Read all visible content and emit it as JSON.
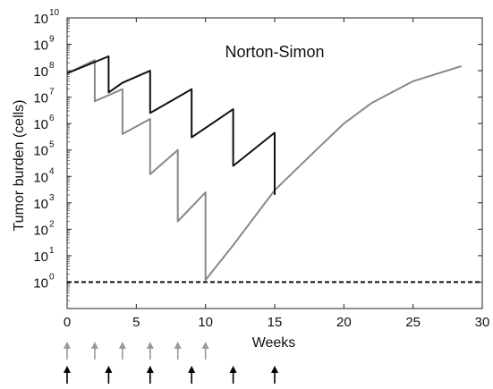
{
  "chart_data": {
    "type": "line",
    "title": "",
    "annotation": "Norton-Simon",
    "xlabel": "Weeks",
    "ylabel": "Tumor burden (cells)",
    "xlim": [
      0,
      30
    ],
    "xticks": [
      0,
      5,
      10,
      15,
      20,
      25,
      30
    ],
    "yscale": "log",
    "ylim_log10": [
      -1,
      10
    ],
    "yticks_log10": [
      0,
      1,
      2,
      3,
      4,
      5,
      6,
      7,
      8,
      9,
      10
    ],
    "ytick_base": "10",
    "threshold": {
      "y": 1,
      "style": "dashed",
      "color": "#000000"
    },
    "series": [
      {
        "color": "#111111",
        "x": [
          0,
          3,
          3,
          4,
          6,
          6,
          9,
          9,
          12,
          12,
          15,
          15
        ],
        "y": [
          80000000,
          350000000,
          15000000,
          35000000,
          100000000,
          2500000,
          20000000,
          300000,
          3500000,
          25000,
          450000,
          2000
        ]
      },
      {
        "color": "#888888",
        "x": [
          0,
          2,
          2,
          4,
          4,
          6,
          6,
          8,
          8,
          10,
          10,
          12,
          15,
          18,
          20,
          22,
          25,
          28.5
        ],
        "y": [
          80000000,
          250000000,
          7000000,
          20000000,
          400000,
          1500000,
          12000,
          100000,
          200,
          2500,
          1.2,
          25,
          3000,
          100000,
          1000000,
          6000000,
          40000000,
          150000000
        ]
      }
    ],
    "dose_markers": [
      {
        "color": "#999999",
        "weeks": [
          0,
          2,
          4,
          6,
          8,
          10
        ]
      },
      {
        "color": "#000000",
        "weeks": [
          0,
          3,
          6,
          9,
          12,
          15
        ]
      }
    ],
    "grid": false,
    "legend": "none"
  }
}
